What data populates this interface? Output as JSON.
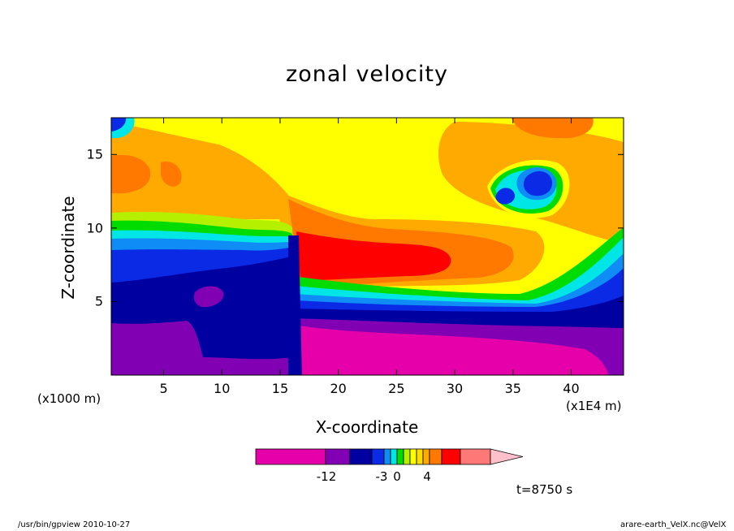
{
  "chart_data": {
    "type": "heatmap",
    "title": "zonal velocity",
    "xlabel": "X-coordinate",
    "ylabel": "Z-coordinate",
    "x_unit_left": "(x1000 m)",
    "x_unit_right": "(x1E4 m)",
    "x_ticks": [
      5,
      10,
      15,
      20,
      25,
      30,
      35,
      40
    ],
    "y_ticks": [
      5,
      10,
      15
    ],
    "xlim": [
      0.5,
      44.5
    ],
    "ylim": [
      0,
      17.5
    ],
    "colorbar": {
      "colors": [
        "#e600aa",
        "#8200b4",
        "#0000a0",
        "#0a2ae6",
        "#0f8cf5",
        "#00e6e6",
        "#00dc00",
        "#b4f000",
        "#ffff00",
        "#ffdc00",
        "#ffaa00",
        "#ff7800",
        "#ff0000",
        "#ff7878",
        "#ffc0cb"
      ],
      "tick_labels": [
        "-12",
        "-3",
        "0",
        "4"
      ]
    },
    "time_label": "t=8750 s"
  },
  "footer": {
    "left": "/usr/bin/gpview   2010-10-27",
    "right": "arare-earth_VelX.nc@VelX"
  }
}
